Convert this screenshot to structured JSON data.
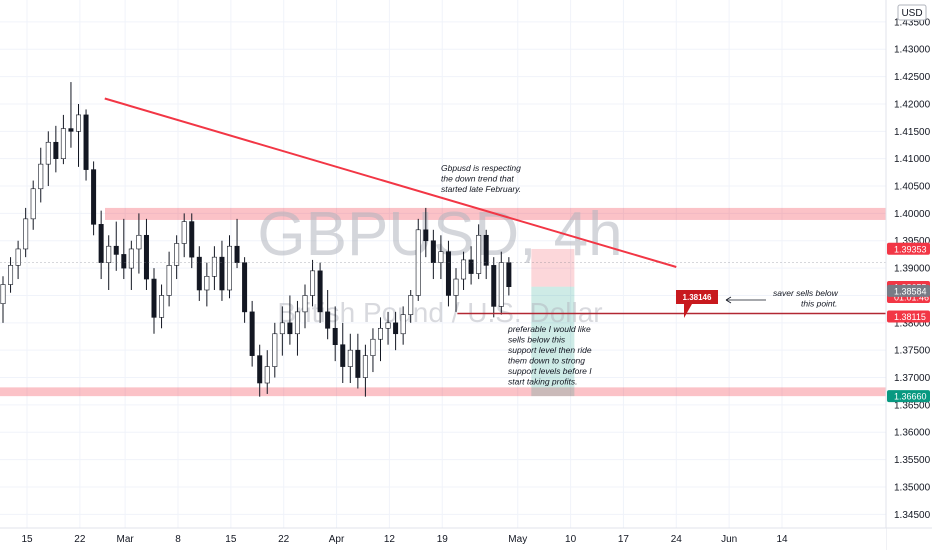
{
  "chart_data": {
    "type": "candlestick",
    "symbol": "GBPUSD",
    "timeframe": "4h",
    "watermark": "GBPUSD, 4h",
    "watermark_sub": "British Pound / U.S. Dollar",
    "currency_button": "USD",
    "y_axis": {
      "ticks": [
        "1.43500",
        "1.43000",
        "1.42500",
        "1.42000",
        "1.41500",
        "1.41000",
        "1.40500",
        "1.40000",
        "1.39500",
        "1.39000",
        "1.38500",
        "1.38000",
        "1.37500",
        "1.37000",
        "1.36500",
        "1.36000",
        "1.35500",
        "1.35000",
        "1.34500"
      ],
      "ylim": [
        1.3425,
        1.439
      ]
    },
    "x_axis": {
      "ticks": [
        "15",
        "22",
        "Mar",
        "8",
        "15",
        "22",
        "Apr",
        "12",
        "19",
        "May",
        "10",
        "17",
        "24",
        "Jun",
        "14"
      ],
      "tick_index": [
        0,
        7,
        13,
        20,
        27,
        34,
        41,
        48,
        55,
        65,
        72,
        79,
        86,
        93,
        100
      ],
      "first_date": "Feb 15"
    },
    "price_tags": {
      "p1": {
        "value": "1.39353",
        "color": "#f23645"
      },
      "p2_value": "1.38655",
      "p2_sub": "01:01:46",
      "p3": {
        "value": "1.38584",
        "color": "#787b86"
      },
      "p4": {
        "value": "1.38115",
        "color": "#f23645"
      },
      "p5": {
        "value": "1.36660",
        "color": "#089981"
      }
    },
    "zones": [
      {
        "from": 1.3988,
        "to": 1.401
      },
      {
        "from": 1.3666,
        "to": 1.3682
      }
    ],
    "trendline": {
      "from_index": 10.3,
      "from_price": 1.421,
      "to_index": 86.0,
      "to_price": 1.3902
    },
    "support_line": {
      "from_index": 57.0,
      "price": 1.3817
    },
    "position": {
      "from_index": 66.8,
      "to_index": 72.5,
      "stop": 1.3935,
      "entry": 1.3866,
      "target": 1.3666
    },
    "callout_value": "1.38146",
    "annotations": {
      "top": [
        "Gbpusd is respecting",
        "the down trend that",
        "started late February."
      ],
      "support": [
        "preferable I would like",
        "sells below this",
        "support level then ride",
        "them down to strong",
        "support levels before I",
        "start taking profits."
      ],
      "right": [
        "saver sells below",
        "this point."
      ]
    },
    "candles": [
      [
        1.3835,
        1.3885,
        1.38,
        1.387
      ],
      [
        1.387,
        1.392,
        1.3855,
        1.3905
      ],
      [
        1.3905,
        1.395,
        1.388,
        1.3935
      ],
      [
        1.3935,
        1.401,
        1.392,
        1.399
      ],
      [
        1.399,
        1.406,
        1.397,
        1.4045
      ],
      [
        1.4045,
        1.412,
        1.402,
        1.409
      ],
      [
        1.409,
        1.415,
        1.405,
        1.413
      ],
      [
        1.413,
        1.416,
        1.4075,
        1.41
      ],
      [
        1.41,
        1.418,
        1.409,
        1.4155
      ],
      [
        1.4155,
        1.424,
        1.412,
        1.415
      ],
      [
        1.415,
        1.42,
        1.4085,
        1.418
      ],
      [
        1.418,
        1.419,
        1.406,
        1.408
      ],
      [
        1.408,
        1.4095,
        1.396,
        1.398
      ],
      [
        1.398,
        1.4005,
        1.388,
        1.391
      ],
      [
        1.391,
        1.396,
        1.386,
        1.394
      ],
      [
        1.394,
        1.3985,
        1.3895,
        1.3925
      ],
      [
        1.3925,
        1.399,
        1.388,
        1.39
      ],
      [
        1.39,
        1.395,
        1.386,
        1.3935
      ],
      [
        1.3935,
        1.4,
        1.389,
        1.396
      ],
      [
        1.396,
        1.399,
        1.386,
        1.388
      ],
      [
        1.388,
        1.39,
        1.378,
        1.381
      ],
      [
        1.381,
        1.387,
        1.379,
        1.385
      ],
      [
        1.385,
        1.393,
        1.383,
        1.3905
      ],
      [
        1.3905,
        1.396,
        1.388,
        1.3945
      ],
      [
        1.3945,
        1.4,
        1.392,
        1.3985
      ],
      [
        1.3985,
        1.4,
        1.39,
        1.392
      ],
      [
        1.392,
        1.394,
        1.384,
        1.386
      ],
      [
        1.386,
        1.391,
        1.383,
        1.3885
      ],
      [
        1.3885,
        1.394,
        1.386,
        1.392
      ],
      [
        1.392,
        1.395,
        1.384,
        1.386
      ],
      [
        1.386,
        1.396,
        1.3845,
        1.394
      ],
      [
        1.394,
        1.399,
        1.39,
        1.391
      ],
      [
        1.391,
        1.392,
        1.38,
        1.382
      ],
      [
        1.382,
        1.384,
        1.372,
        1.374
      ],
      [
        1.374,
        1.376,
        1.3665,
        1.369
      ],
      [
        1.369,
        1.375,
        1.367,
        1.372
      ],
      [
        1.372,
        1.38,
        1.37,
        1.378
      ],
      [
        1.378,
        1.383,
        1.374,
        1.38
      ],
      [
        1.38,
        1.385,
        1.376,
        1.378
      ],
      [
        1.378,
        1.384,
        1.374,
        1.382
      ],
      [
        1.382,
        1.387,
        1.379,
        1.385
      ],
      [
        1.385,
        1.3915,
        1.383,
        1.3895
      ],
      [
        1.3895,
        1.391,
        1.38,
        1.382
      ],
      [
        1.382,
        1.386,
        1.377,
        1.379
      ],
      [
        1.379,
        1.383,
        1.373,
        1.376
      ],
      [
        1.376,
        1.38,
        1.369,
        1.372
      ],
      [
        1.372,
        1.378,
        1.369,
        1.375
      ],
      [
        1.375,
        1.378,
        1.368,
        1.37
      ],
      [
        1.37,
        1.376,
        1.3665,
        1.374
      ],
      [
        1.374,
        1.379,
        1.371,
        1.377
      ],
      [
        1.377,
        1.381,
        1.373,
        1.379
      ],
      [
        1.379,
        1.382,
        1.376,
        1.38
      ],
      [
        1.38,
        1.382,
        1.375,
        1.378
      ],
      [
        1.378,
        1.383,
        1.376,
        1.3815
      ],
      [
        1.3815,
        1.386,
        1.38,
        1.385
      ],
      [
        1.385,
        1.399,
        1.384,
        1.397
      ],
      [
        1.397,
        1.401,
        1.392,
        1.395
      ],
      [
        1.395,
        1.397,
        1.388,
        1.391
      ],
      [
        1.391,
        1.396,
        1.388,
        1.393
      ],
      [
        1.393,
        1.395,
        1.383,
        1.385
      ],
      [
        1.385,
        1.39,
        1.382,
        1.388
      ],
      [
        1.388,
        1.393,
        1.386,
        1.3915
      ],
      [
        1.3915,
        1.394,
        1.387,
        1.389
      ],
      [
        1.389,
        1.398,
        1.388,
        1.396
      ],
      [
        1.396,
        1.397,
        1.388,
        1.3905
      ],
      [
        1.3905,
        1.392,
        1.381,
        1.383
      ],
      [
        1.383,
        1.393,
        1.3815,
        1.391
      ],
      [
        1.391,
        1.392,
        1.385,
        1.3866
      ]
    ]
  }
}
